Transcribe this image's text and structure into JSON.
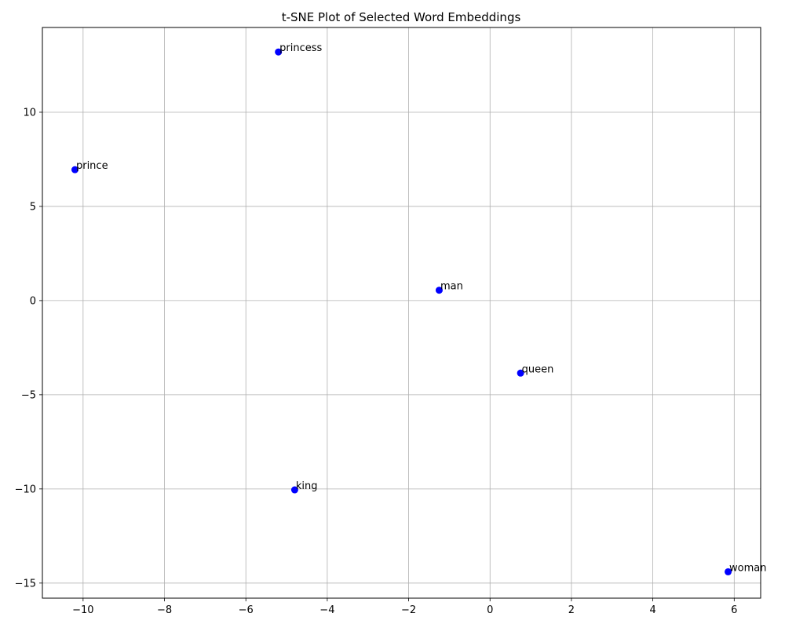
{
  "chart_data": {
    "type": "scatter",
    "title": "t-SNE Plot of Selected Word Embeddings",
    "xlabel": "",
    "ylabel": "",
    "xlim": [
      -11.0,
      6.65
    ],
    "ylim": [
      -15.8,
      14.5
    ],
    "xticks": [
      -10,
      -8,
      -6,
      -4,
      -2,
      0,
      2,
      4,
      6
    ],
    "yticks": [
      -15,
      -10,
      -5,
      0,
      5,
      10
    ],
    "grid": true,
    "point_color": "#0000ff",
    "points": [
      {
        "label": "princess",
        "x": -5.2,
        "y": 13.2
      },
      {
        "label": "prince",
        "x": -10.2,
        "y": 6.95
      },
      {
        "label": "man",
        "x": -1.25,
        "y": 0.55
      },
      {
        "label": "queen",
        "x": 0.75,
        "y": -3.85
      },
      {
        "label": "king",
        "x": -4.8,
        "y": -10.05
      },
      {
        "label": "woman",
        "x": 5.85,
        "y": -14.4
      }
    ]
  }
}
